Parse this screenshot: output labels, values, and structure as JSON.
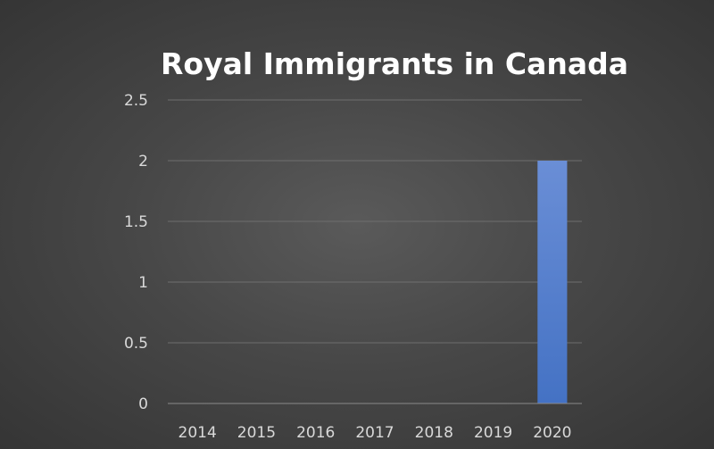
{
  "chart_data": {
    "type": "bar",
    "title": "Royal Immigrants in Canada",
    "categories": [
      "2014",
      "2015",
      "2016",
      "2017",
      "2018",
      "2019",
      "2020"
    ],
    "values": [
      0,
      0,
      0,
      0,
      0,
      0,
      2
    ],
    "ylim": [
      0,
      2.5
    ],
    "yticks": [
      "0",
      "0.5",
      "1",
      "1.5",
      "2",
      "2.5"
    ],
    "xlabel": "",
    "ylabel": "",
    "grid": true,
    "legend": "none",
    "bar_color": "#4472c4",
    "bar_color_light": "#6a8ed6",
    "background_color": "#404040"
  }
}
